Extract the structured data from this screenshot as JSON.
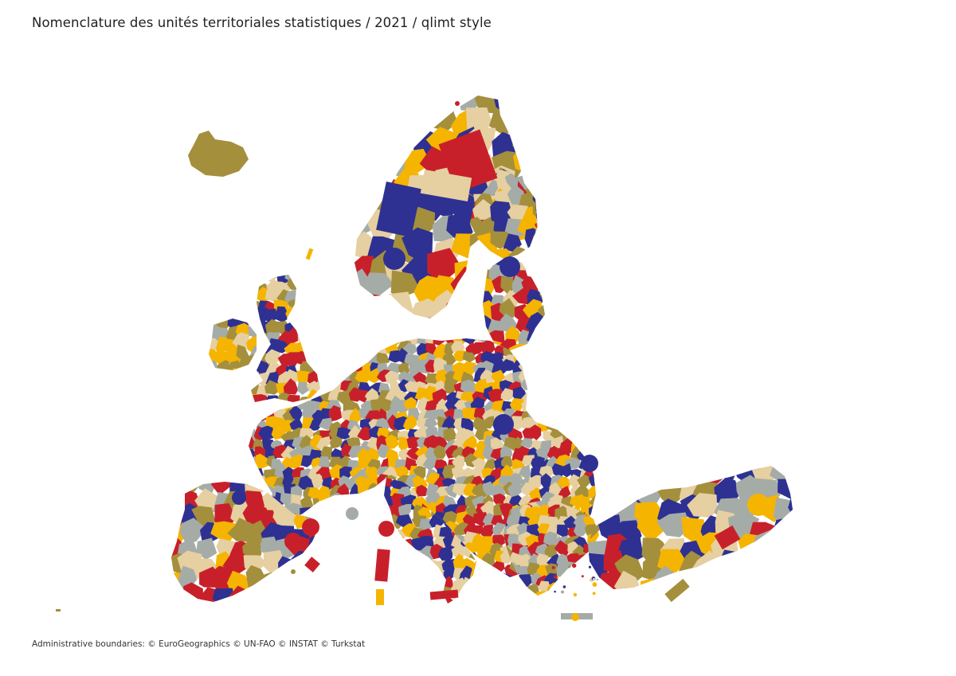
{
  "map": {
    "title": "Nomenclature des unités territoriales statistiques / 2021 / qlimt style",
    "attribution": "Administrative boundaries: © EuroGeographics © UN-FAO © INSTAT © Turkstat",
    "palette": {
      "red": "#c8202a",
      "blue": "#2e3192",
      "yellow": "#f5b400",
      "olive": "#a48f3c",
      "beige": "#e6cfa0",
      "grey": "#a5aca7"
    },
    "background": "#ffffff"
  }
}
